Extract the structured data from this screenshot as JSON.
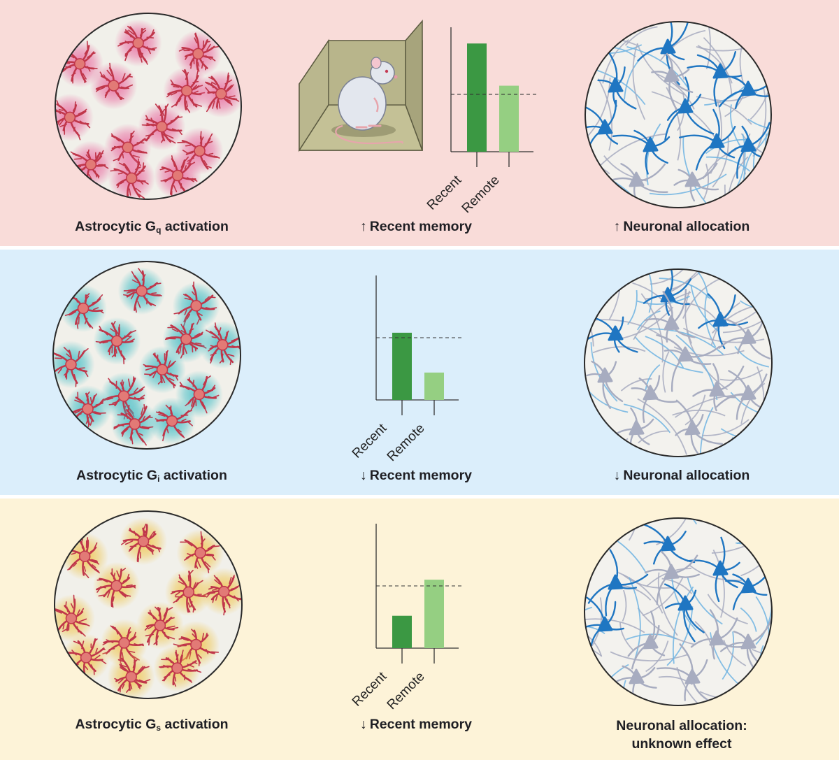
{
  "colors": {
    "panel_gq_bg": "#f9dcd9",
    "panel_gi_bg": "#dbeefb",
    "panel_gs_bg": "#fdf3d8",
    "astrocyte": "#c0364a",
    "astrocyte_body": "#e27a76",
    "halo_gq": "#e8609a",
    "halo_gi": "#32b8c2",
    "halo_gs": "#efc243",
    "neuron_active": "#1f76c2",
    "neuron_light": "#6fb4e2",
    "neuron_inactive": "#a7acc0",
    "bar_recent": "#3b9843",
    "bar_remote": "#95cf82",
    "dish_bg": "#f1f0ea"
  },
  "icons": [
    "mouse-in-chamber",
    "astrocyte-dish",
    "neuron-dish"
  ],
  "panels": [
    {
      "id": "gq",
      "astro_label_prefix": "Astrocytic G",
      "astro_label_sub": "q",
      "astro_label_suffix": " activation",
      "memory_arrow": "↑",
      "memory_label": "Recent memory",
      "allocation_arrow": "↑",
      "allocation_label": "Neuronal allocation",
      "allocation_label_line2": ""
    },
    {
      "id": "gi",
      "astro_label_prefix": "Astrocytic G",
      "astro_label_sub": "i",
      "astro_label_suffix": " activation",
      "memory_arrow": "↓",
      "memory_label": "Recent memory",
      "allocation_arrow": "↓",
      "allocation_label": "Neuronal allocation",
      "allocation_label_line2": ""
    },
    {
      "id": "gs",
      "astro_label_prefix": "Astrocytic G",
      "astro_label_sub": "s",
      "astro_label_suffix": " activation",
      "memory_arrow": "↓",
      "memory_label": "Recent memory",
      "allocation_arrow": "",
      "allocation_label": "Neuronal allocation:",
      "allocation_label_line2": "unknown effect"
    }
  ],
  "chart_data": [
    {
      "type": "bar",
      "categories": [
        "Recent",
        "Remote"
      ],
      "values": [
        1.0,
        0.61
      ],
      "baseline": 0.53,
      "ylim": [
        0,
        1.15
      ],
      "grid": false,
      "title": "",
      "xlabel": "",
      "ylabel": ""
    },
    {
      "type": "bar",
      "categories": [
        "Recent",
        "Remote"
      ],
      "values": [
        0.54,
        0.22
      ],
      "baseline": 0.5,
      "ylim": [
        0,
        1.0
      ],
      "grid": false,
      "title": "",
      "xlabel": "",
      "ylabel": ""
    },
    {
      "type": "bar",
      "categories": [
        "Recent",
        "Remote"
      ],
      "values": [
        0.26,
        0.55
      ],
      "baseline": 0.5,
      "ylim": [
        0,
        1.0
      ],
      "grid": false,
      "title": "",
      "xlabel": "",
      "ylabel": ""
    }
  ]
}
